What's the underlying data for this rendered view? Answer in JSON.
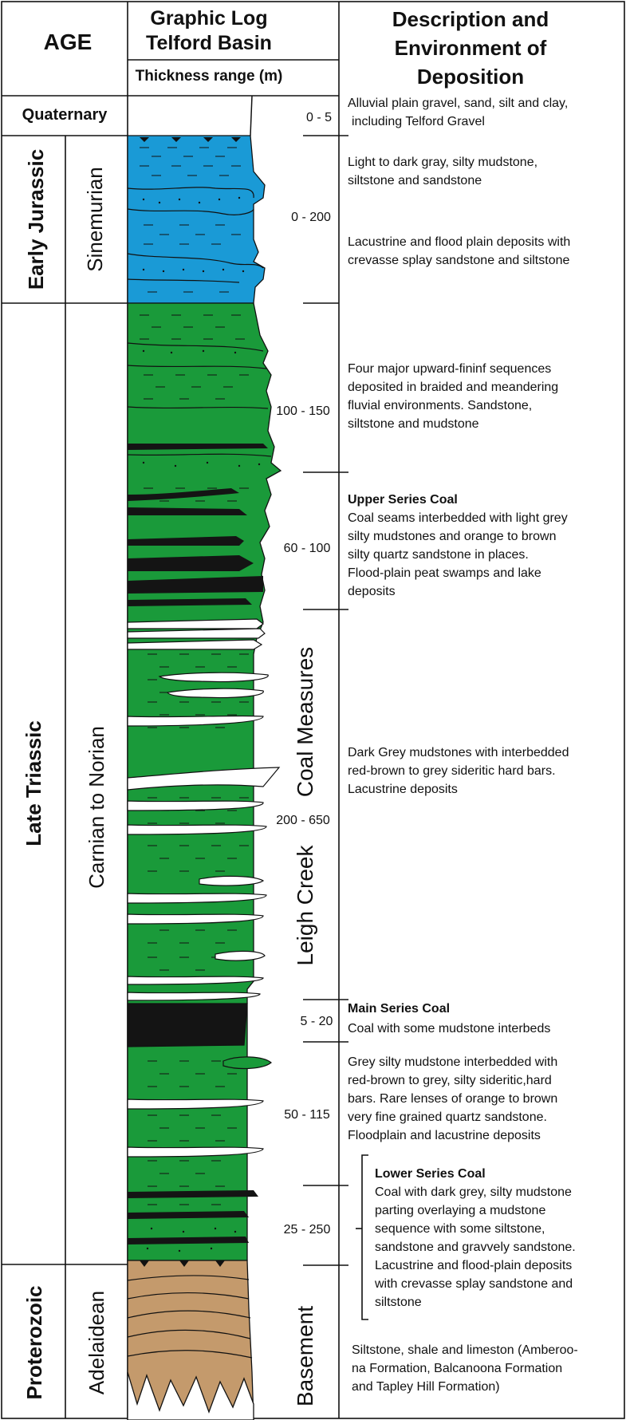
{
  "header": {
    "age": "AGE",
    "log_title_1": "Graphic Log",
    "log_title_2": "Telford Basin",
    "thickness_label": "Thickness range (m)",
    "desc_title_1": "Description and",
    "desc_title_2": "Environment of",
    "desc_title_3": "Deposition"
  },
  "ages": {
    "quaternary": "Quaternary",
    "early_jurassic": "Early Jurassic",
    "late_triassic": "Late Triassic",
    "proterozoic": "Proterozoic"
  },
  "stages": {
    "sinemurian": "Sinemurian",
    "carnian_norian": "Carnian to Norian",
    "adelaidean": "Adelaidean"
  },
  "formations": {
    "coal_measures": "Coal Measures",
    "leigh_creek": "Leigh Creek",
    "basement": "Basement"
  },
  "thickness": {
    "t1": "0 - 5",
    "t2": "0 - 200",
    "t3": "100 - 150",
    "t4": "60 - 100",
    "t5": "200 - 650",
    "t6": "5 - 20",
    "t7": "50 - 115",
    "t8": "25 - 250"
  },
  "descriptions": {
    "quaternary": [
      "Alluvial plain gravel, sand, silt and clay,",
      "including Telford Gravel"
    ],
    "jurassic_a": [
      "Light to dark gray, silty mudstone,",
      "siltstone and sandstone"
    ],
    "jurassic_b": [
      "Lacustrine and flood plain deposits with",
      "crevasse splay sandstone and siltstone"
    ],
    "fluvial": [
      "Four major upward-fininf sequences",
      "deposited in braided and meandering",
      "fluvial environments. Sandstone,",
      "siltstone and mudstone"
    ],
    "upper_coal_title": "Upper Series Coal",
    "upper_coal": [
      "Coal seams interbedded with light grey",
      "silty mudstones and orange to brown",
      "silty quartz sandstone in places.",
      "Flood-plain peat swamps and lake",
      "deposits"
    ],
    "dark_grey": [
      "Dark Grey mudstones with interbedded",
      "red-brown to grey sideritic hard bars.",
      "Lacustrine deposits"
    ],
    "main_coal_title": "Main Series Coal",
    "main_coal": [
      "Coal with some mudstone interbeds"
    ],
    "grey_silty": [
      "Grey silty mudstone interbedded with",
      "red-brown to grey, silty sideritic,hard",
      "bars. Rare lenses of orange to brown",
      "very fine grained quartz sandstone.",
      "Floodplain and lacustrine deposits"
    ],
    "lower_coal_title": "Lower Series Coal",
    "lower_coal": [
      "Coal with dark grey, silty mudstone",
      "parting overlaying a mudstone",
      "sequence with some siltstone,",
      "sandstone and gravvely sandstone.",
      "Lacustrine and flood-plain deposits",
      "with crevasse splay sandstone and",
      "siltstone"
    ],
    "basement": [
      "Siltstone, shale and limeston (Amberoo-",
      "na Formation, Balcanoona Formation",
      "and Tapley Hill Formation)"
    ]
  },
  "colors": {
    "jurassic_blue": "#1a9ad6",
    "triassic_green": "#1a9a3a",
    "coal_black": "#141414",
    "basement_tan": "#c49a6c",
    "hard_bar_white": "#ffffff"
  }
}
